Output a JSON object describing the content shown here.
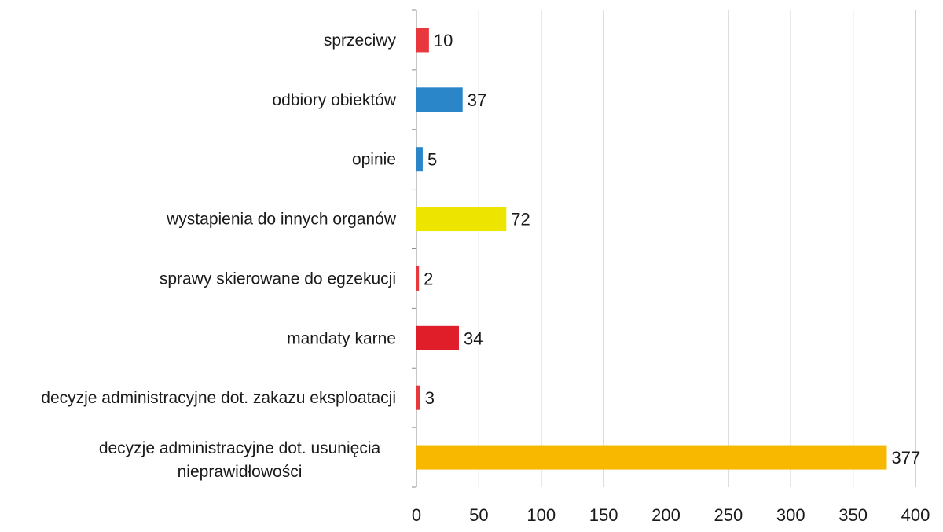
{
  "chart_data": {
    "type": "bar",
    "orientation": "horizontal",
    "categories": [
      "sprzeciwy",
      "odbiory obiektów",
      "opinie",
      "wystapienia do innych organów",
      "sprawy skierowane do egzekucji",
      "mandaty karne",
      "decyzje administracyjne dot. zakazu eksploatacji",
      "decyzje administracyjne dot. usunięcia nieprawidłowości"
    ],
    "values": [
      10,
      37,
      5,
      72,
      2,
      34,
      3,
      377
    ],
    "bar_colors": [
      "#e8383d",
      "#2a86c8",
      "#2a86c8",
      "#ede500",
      "#e8383d",
      "#e01e2a",
      "#e8383d",
      "#f9b800"
    ],
    "xlim": [
      0,
      400
    ],
    "x_ticks": [
      0,
      50,
      100,
      150,
      200,
      250,
      300,
      350,
      400
    ],
    "grid": "vertical",
    "title": "",
    "xlabel": "",
    "ylabel": ""
  }
}
